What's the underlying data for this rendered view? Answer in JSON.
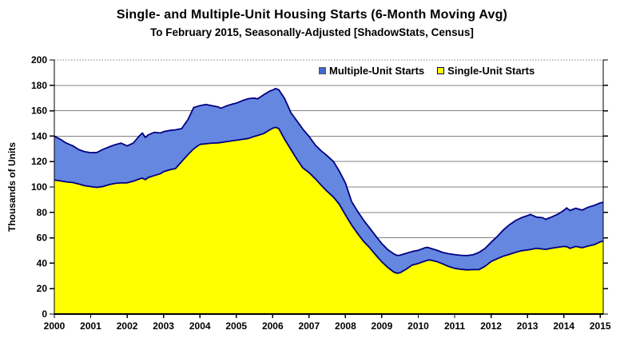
{
  "colors": {
    "single_fill": "#FFFF00",
    "multiple_fill_dark": "#3E68D8",
    "multiple_fill_light": "#8CA6E8",
    "series_outline": "#000080",
    "gridline": "#808080",
    "axis": "#000000",
    "text": "#000000"
  },
  "chart_data": {
    "type": "area",
    "stacked": true,
    "title": "Single- and Multiple-Unit Housing Starts (6-Month Moving Avg)",
    "subtitle": "To February 2015, Seasonally-Adjusted [ShadowStats, Census]",
    "xlabel": "",
    "ylabel": "Thousands of Units",
    "legend_position": "top-inside",
    "grid": "horizontal",
    "xlim": [
      2000,
      2015.083
    ],
    "ylim": [
      0,
      200
    ],
    "x_ticks": [
      2000,
      2001,
      2002,
      2003,
      2004,
      2005,
      2006,
      2007,
      2008,
      2009,
      2010,
      2011,
      2012,
      2013,
      2014,
      2015
    ],
    "y_ticks": [
      0,
      20,
      40,
      60,
      80,
      100,
      120,
      140,
      160,
      180,
      200
    ],
    "x": [
      2000.0,
      2000.17,
      2000.33,
      2000.5,
      2000.67,
      2000.83,
      2001.0,
      2001.17,
      2001.33,
      2001.5,
      2001.67,
      2001.83,
      2002.0,
      2002.17,
      2002.33,
      2002.42,
      2002.5,
      2002.58,
      2002.75,
      2002.92,
      2003.0,
      2003.17,
      2003.33,
      2003.5,
      2003.67,
      2003.83,
      2004.0,
      2004.17,
      2004.33,
      2004.5,
      2004.58,
      2004.75,
      2004.92,
      2005.0,
      2005.17,
      2005.33,
      2005.5,
      2005.58,
      2005.75,
      2005.92,
      2006.0,
      2006.08,
      2006.17,
      2006.33,
      2006.5,
      2006.67,
      2006.83,
      2007.0,
      2007.17,
      2007.33,
      2007.5,
      2007.67,
      2007.83,
      2008.0,
      2008.17,
      2008.33,
      2008.5,
      2008.67,
      2008.83,
      2009.0,
      2009.17,
      2009.33,
      2009.42,
      2009.5,
      2009.67,
      2009.83,
      2010.0,
      2010.17,
      2010.25,
      2010.33,
      2010.5,
      2010.67,
      2010.83,
      2011.0,
      2011.17,
      2011.33,
      2011.5,
      2011.67,
      2011.83,
      2012.0,
      2012.17,
      2012.33,
      2012.5,
      2012.67,
      2012.83,
      2013.0,
      2013.08,
      2013.25,
      2013.42,
      2013.5,
      2013.67,
      2013.83,
      2014.0,
      2014.08,
      2014.17,
      2014.33,
      2014.5,
      2014.67,
      2014.83,
      2015.0,
      2015.083
    ],
    "series": [
      {
        "name": "Single-Unit Starts",
        "color": "#FFFF00",
        "values": [
          105.5,
          104.8,
          104,
          103.5,
          102.3,
          101,
          100.3,
          99.7,
          100.3,
          101.8,
          102.8,
          103.2,
          103.3,
          104.5,
          106.3,
          107,
          105.8,
          107.5,
          109,
          110.5,
          112,
          113.5,
          114.5,
          120,
          125.5,
          130,
          133.5,
          134,
          134.5,
          134.7,
          135,
          135.8,
          136.5,
          136.8,
          137.5,
          138.2,
          139.9,
          140.5,
          142,
          145,
          146.2,
          147,
          146,
          137.5,
          129.5,
          121.7,
          115,
          111.3,
          106.5,
          101.5,
          96.5,
          92,
          86.5,
          78,
          70,
          63.5,
          57.1,
          52,
          46.5,
          41.1,
          36.5,
          33,
          32.1,
          32.5,
          35.3,
          38.5,
          39.8,
          41.5,
          42.3,
          42.5,
          41.4,
          39.5,
          37.5,
          36,
          35.2,
          34.8,
          35,
          35,
          37.5,
          41.3,
          43.5,
          45.5,
          46.9,
          48.5,
          49.8,
          50.4,
          50.8,
          51.7,
          51.2,
          50.9,
          51.8,
          52.5,
          53.2,
          53,
          51.7,
          53.2,
          52.2,
          53.5,
          54.5,
          56.8,
          57.4
        ]
      },
      {
        "name": "Multiple-Unit Starts",
        "color": "#4169D0",
        "values": [
          34.5,
          32.7,
          30.5,
          29,
          27.2,
          26.8,
          26.7,
          27.5,
          29.2,
          29.7,
          30.5,
          31.3,
          29,
          30,
          33.7,
          35.5,
          33.2,
          33.5,
          34,
          32,
          31.5,
          31,
          30.5,
          26,
          27.5,
          32.5,
          30.5,
          31,
          29.5,
          28.3,
          27,
          28.2,
          29,
          29.2,
          30.5,
          31.3,
          30.1,
          28.8,
          30.5,
          30.5,
          30.1,
          30.5,
          30.5,
          32,
          29,
          30.2,
          30.5,
          28.5,
          26.5,
          27,
          28,
          28,
          26,
          25,
          18.5,
          17.5,
          16.7,
          15.5,
          15,
          14.3,
          14,
          14.3,
          14,
          13.8,
          12.5,
          10.7,
          10.4,
          10.5,
          10.2,
          9.3,
          8.9,
          9,
          10,
          10.8,
          11,
          11.2,
          11.6,
          13.5,
          14,
          15.2,
          17.5,
          20.5,
          23.2,
          25,
          26,
          27,
          27.6,
          24.6,
          24.6,
          23.6,
          24.7,
          26,
          28.4,
          30.5,
          29.8,
          30.1,
          29.6,
          30.6,
          31,
          30.6,
          30.6
        ]
      }
    ]
  }
}
